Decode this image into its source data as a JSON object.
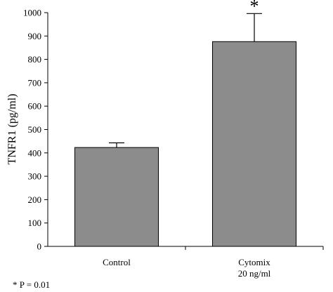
{
  "chart_data": {
    "type": "bar",
    "categories": [
      {
        "line1": "Control",
        "line2": ""
      },
      {
        "line1": "Cytomix",
        "line2": "20 ng/ml"
      }
    ],
    "values": [
      423,
      876
    ],
    "error": [
      20,
      120
    ],
    "significance": [
      "",
      "*"
    ],
    "ylabel": "TNFR1 (pg/ml)",
    "ylim": [
      0,
      1000
    ],
    "yticks": [
      0,
      100,
      200,
      300,
      400,
      500,
      600,
      700,
      800,
      900,
      1000
    ],
    "bar_color": "#8c8c8c",
    "grid": false,
    "footnote": "* P = 0.01"
  }
}
